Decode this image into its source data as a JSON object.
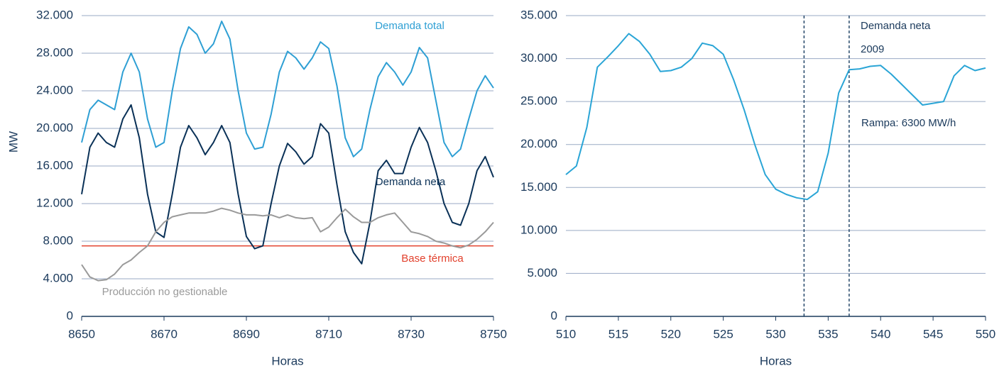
{
  "chart_data": [
    {
      "type": "line",
      "y_label": "MW",
      "x_label": "Horas",
      "x": [
        8650,
        8652,
        8654,
        8656,
        8658,
        8660,
        8662,
        8664,
        8666,
        8668,
        8670,
        8672,
        8674,
        8676,
        8678,
        8680,
        8682,
        8684,
        8686,
        8688,
        8690,
        8692,
        8694,
        8696,
        8698,
        8700,
        8702,
        8704,
        8706,
        8708,
        8710,
        8712,
        8714,
        8716,
        8718,
        8720,
        8722,
        8724,
        8726,
        8728,
        8730,
        8732,
        8734,
        8736,
        8738,
        8740,
        8742,
        8744,
        8746,
        8748,
        8750
      ],
      "series": [
        {
          "name": "Demanda total",
          "color": "#2e9fd4",
          "values": [
            18500,
            22000,
            23000,
            22500,
            22000,
            26000,
            28000,
            26000,
            21000,
            18000,
            18500,
            24000,
            28500,
            30800,
            30000,
            28000,
            29000,
            31400,
            29500,
            24000,
            19500,
            17800,
            18000,
            21500,
            26000,
            28200,
            27500,
            26300,
            27500,
            29200,
            28500,
            24500,
            19000,
            17000,
            17800,
            22000,
            25500,
            27000,
            26000,
            24600,
            26000,
            28600,
            27500,
            23000,
            18500,
            17000,
            17800,
            21000,
            24000,
            25600,
            24300
          ]
        },
        {
          "name": "Demanda neta",
          "color": "#0a3157",
          "values": [
            13000,
            18000,
            19500,
            18500,
            18000,
            21000,
            22500,
            19000,
            13000,
            9000,
            8400,
            13000,
            18000,
            20300,
            19000,
            17200,
            18500,
            20300,
            18500,
            13000,
            8500,
            7200,
            7500,
            12000,
            16000,
            18400,
            17500,
            16200,
            17000,
            20500,
            19500,
            14000,
            9000,
            6800,
            5600,
            10000,
            15500,
            16600,
            15200,
            15200,
            18000,
            20100,
            18500,
            15500,
            12000,
            10000,
            9700,
            12000,
            15500,
            17000,
            14800
          ]
        },
        {
          "name": "Producción no gestionable",
          "color": "#9a9a9a",
          "values": [
            5500,
            4200,
            3800,
            3900,
            4500,
            5500,
            6000,
            6800,
            7500,
            9000,
            10000,
            10600,
            10800,
            11000,
            11000,
            11000,
            11200,
            11500,
            11300,
            11000,
            10800,
            10800,
            10700,
            10800,
            10500,
            10800,
            10500,
            10400,
            10500,
            9000,
            9500,
            10500,
            11400,
            10600,
            10000,
            10000,
            10500,
            10800,
            11000,
            10000,
            9000,
            8800,
            8500,
            8000,
            7800,
            7500,
            7300,
            7600,
            8200,
            9000,
            10000
          ]
        }
      ],
      "hlines": [
        {
          "name": "Base térmica",
          "color": "#e2412d",
          "value": 7500
        }
      ],
      "xlim": [
        8650,
        8750
      ],
      "xticks": [
        8650,
        8670,
        8690,
        8710,
        8730,
        8750
      ],
      "ylim": [
        0,
        32000
      ],
      "yticks": [
        0,
        {
          "value": 4000,
          "label": "4.000"
        },
        {
          "value": 8000,
          "label": "8.000"
        },
        {
          "value": 12000,
          "label": "12.000"
        },
        {
          "value": 16000,
          "label": "16.000"
        },
        {
          "value": 20000,
          "label": "20.000"
        },
        {
          "value": 24000,
          "label": "24.000"
        },
        {
          "value": 28000,
          "label": "28.000"
        },
        {
          "value": 32000,
          "label": "32.000"
        }
      ],
      "grid": true
    },
    {
      "type": "line",
      "x_label": "Horas",
      "x": [
        510,
        511,
        512,
        513,
        514,
        515,
        516,
        517,
        518,
        519,
        520,
        521,
        522,
        523,
        524,
        525,
        526,
        527,
        528,
        529,
        530,
        531,
        532,
        533,
        534,
        535,
        536,
        537,
        538,
        539,
        540,
        541,
        542,
        543,
        544,
        545,
        546,
        547,
        548,
        549,
        550
      ],
      "series": [
        {
          "color": "#2aa5d6",
          "values": [
            16500,
            17500,
            22000,
            29000,
            30200,
            31500,
            32900,
            32000,
            30500,
            28500,
            28600,
            29000,
            30000,
            31800,
            31500,
            30500,
            27500,
            24000,
            20000,
            16500,
            14800,
            14200,
            13800,
            13600,
            14500,
            19000,
            26000,
            28700,
            28800,
            29100,
            29200,
            28200,
            27000,
            25800,
            24600,
            24800,
            25000,
            28000,
            29200,
            28600,
            28900
          ]
        }
      ],
      "vlines": [
        532.7,
        537
      ],
      "annotations": [
        "Demanda neta",
        "2009",
        "Rampa: 6300 MW/h"
      ],
      "xlim": [
        510,
        550
      ],
      "xticks": [
        510,
        515,
        520,
        525,
        530,
        535,
        540,
        545,
        550
      ],
      "ylim": [
        0,
        35000
      ],
      "yticks": [
        0,
        {
          "value": 5000,
          "label": "5.000"
        },
        {
          "value": 10000,
          "label": "10.000"
        },
        {
          "value": 15000,
          "label": "15.000"
        },
        {
          "value": 20000,
          "label": "20.000"
        },
        {
          "value": 25000,
          "label": "25.000"
        },
        {
          "value": 30000,
          "label": "30.000"
        },
        {
          "value": 35000,
          "label": "35.000"
        }
      ],
      "grid": true
    }
  ]
}
